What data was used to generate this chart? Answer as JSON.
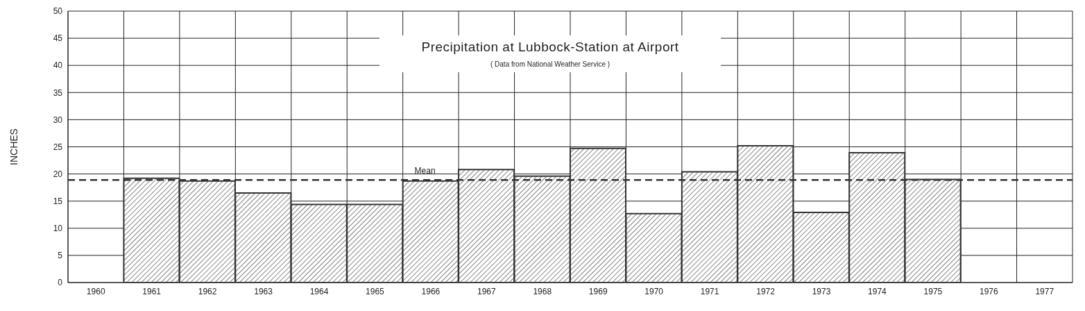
{
  "chart_data": {
    "type": "bar",
    "title": "Precipitation at Lubbock-Station at Airport",
    "subtitle": "( Data from National Weather Service )",
    "ylabel": "INCHES",
    "categories": [
      "1960",
      "1961",
      "1962",
      "1963",
      "1964",
      "1965",
      "1966",
      "1967",
      "1968",
      "1969",
      "1970",
      "1971",
      "1972",
      "1973",
      "1974",
      "1975",
      "1976",
      "1977"
    ],
    "values": [
      null,
      19.2,
      18.7,
      16.5,
      14.4,
      14.4,
      18.7,
      20.8,
      19.6,
      24.7,
      12.7,
      20.4,
      25.2,
      12.9,
      23.9,
      19.0,
      null,
      null
    ],
    "color": "#333333",
    "ylim": [
      0,
      50
    ],
    "yticks": [
      0,
      5,
      10,
      15,
      20,
      25,
      30,
      35,
      40,
      45,
      50
    ],
    "grid": true,
    "ref_lines": [
      {
        "axis": "y",
        "value": 18.9,
        "label": "Mean",
        "line_style": "dashed",
        "color": "#333333"
      }
    ]
  }
}
